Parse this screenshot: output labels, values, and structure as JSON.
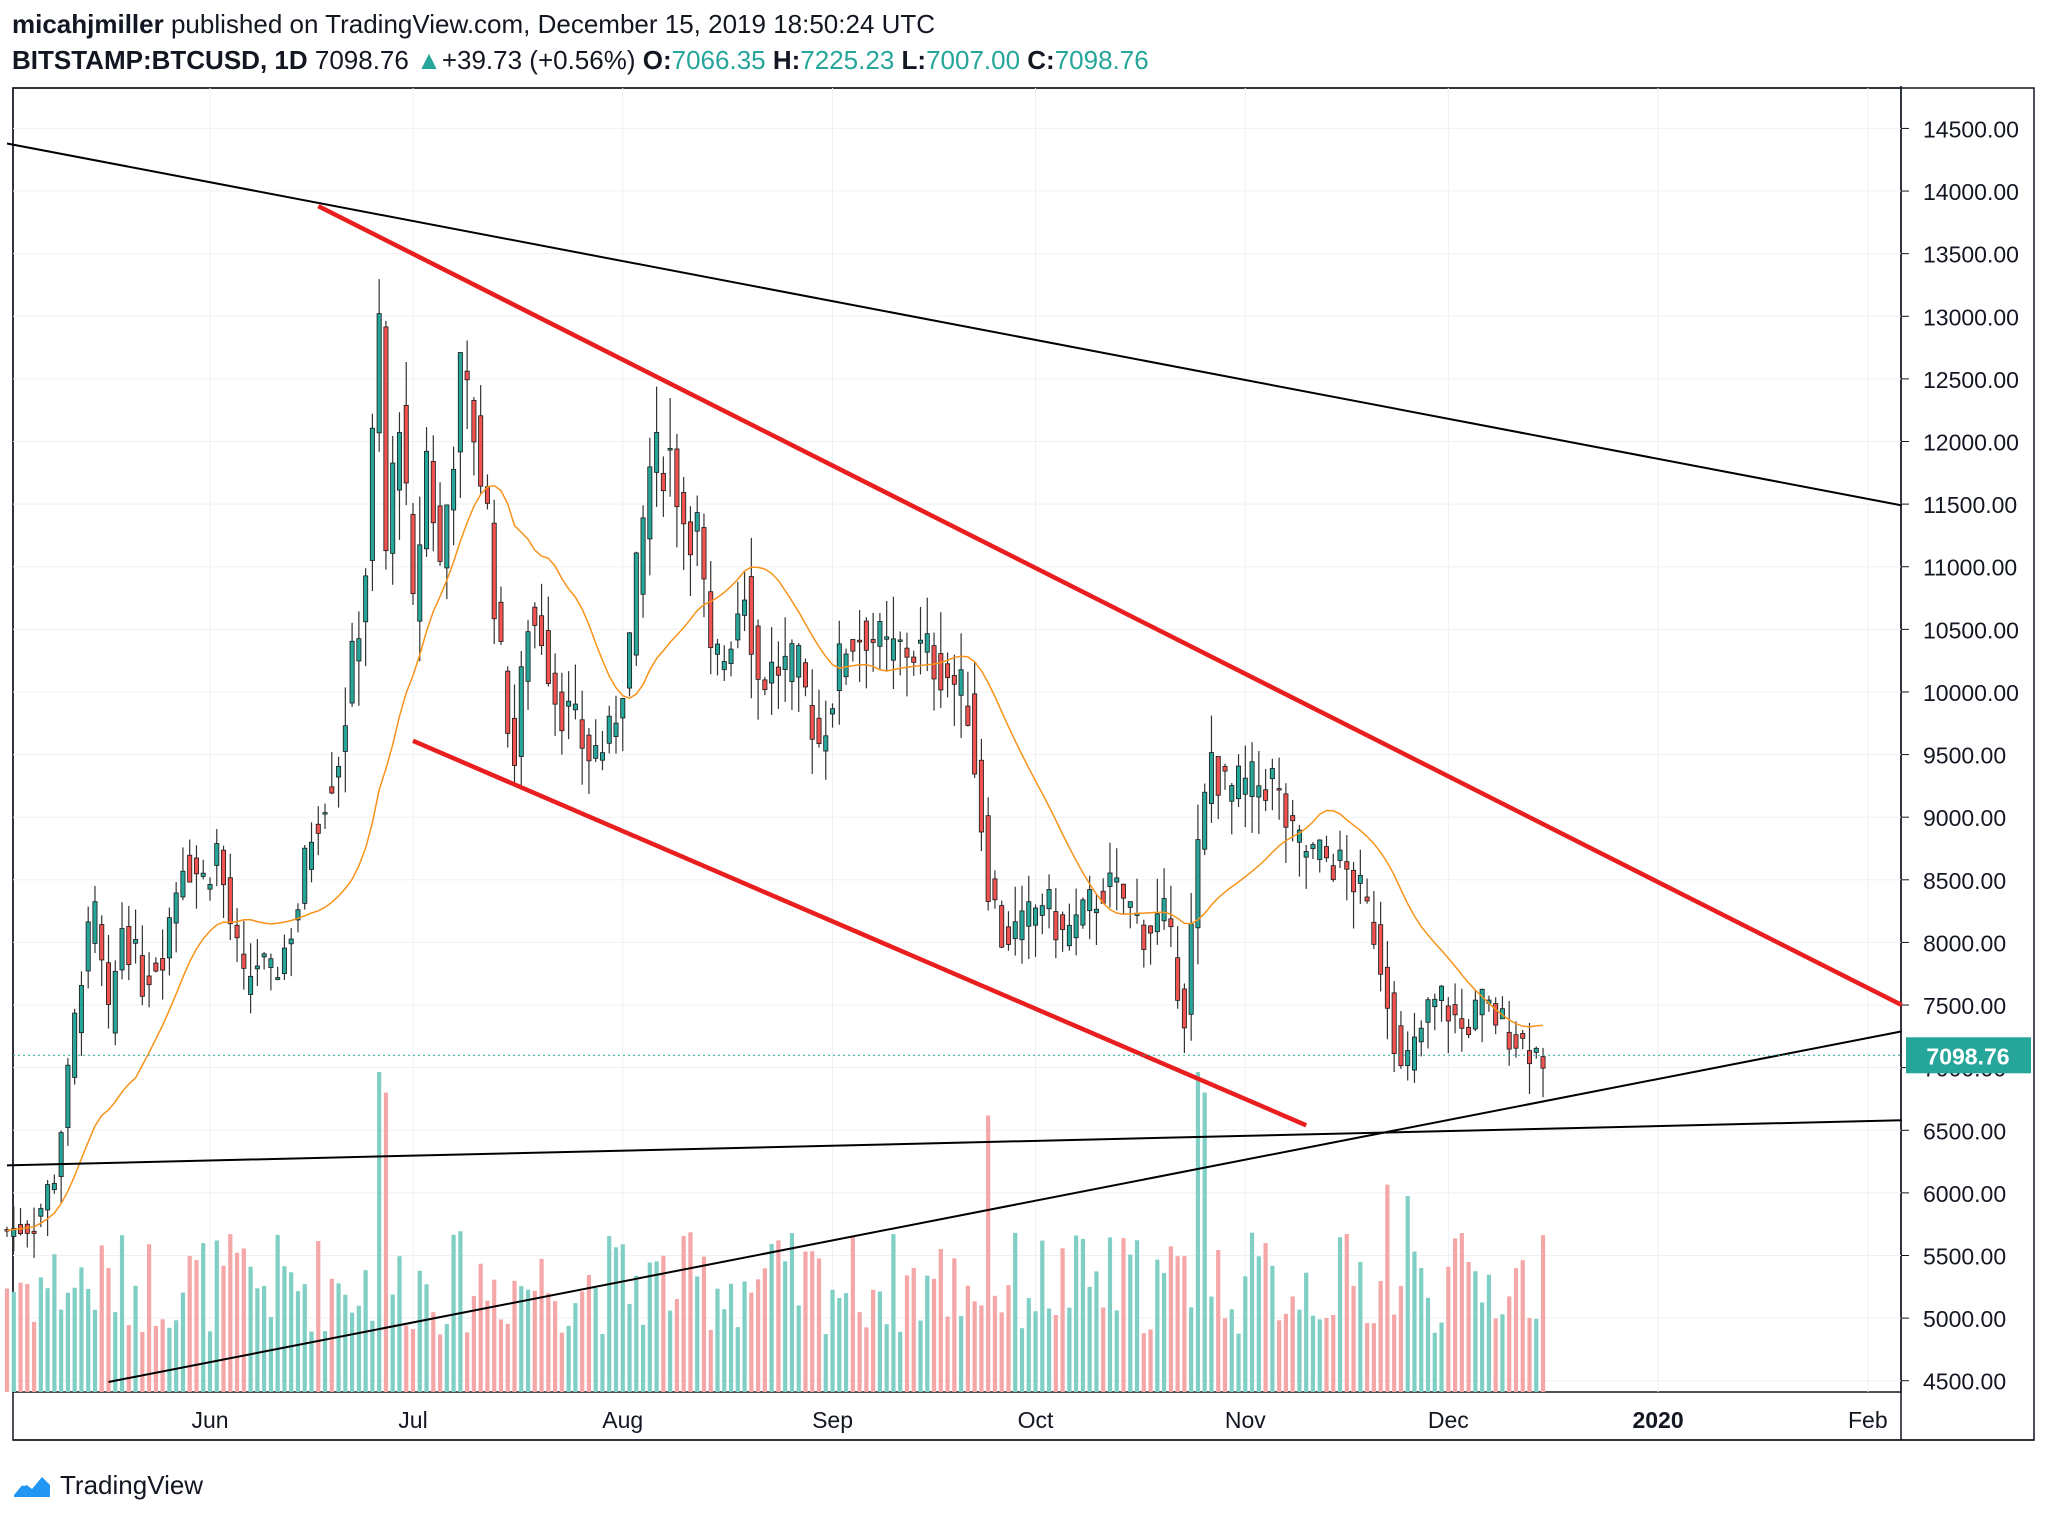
{
  "header": {
    "author": "micahjmiller",
    "published_text": "published on TradingView.com, December 15, 2019 18:50:24 UTC",
    "symbol": "BITSTAMP:BTCUSD, 1D",
    "last": "7098.76",
    "change_arrow": "▲",
    "change": "+39.73 (+0.56%)",
    "o_label": "O:",
    "o_value": "7066.35",
    "h_label": "H:",
    "h_value": "7225.23",
    "l_label": "L:",
    "l_value": "7007.00",
    "c_label": "C:",
    "c_value": "7098.76"
  },
  "footer": {
    "brand": "TradingView"
  },
  "colors": {
    "up": "#26a69a",
    "down": "#ef5350",
    "candle_up_fill": "#26a69a",
    "vol_up": "#7fcfc4",
    "vol_down": "#f5a6a6",
    "ma": "#f7931a",
    "channel": "#e91e1e",
    "trend": "#000000",
    "grid": "#eef0f3"
  },
  "chart_data": {
    "type": "candlestick",
    "title": "",
    "price_label": "7098.76",
    "y_ticks": [
      "14500.00",
      "14000.00",
      "13500.00",
      "13000.00",
      "12500.00",
      "12000.00",
      "11500.00",
      "11000.00",
      "10500.00",
      "10000.00",
      "9500.00",
      "9000.00",
      "8500.00",
      "8000.00",
      "7500.00",
      "7000.00",
      "6500.00",
      "6000.00",
      "5500.00",
      "5000.00",
      "4500.00"
    ],
    "ylim": [
      4500,
      14500
    ],
    "x_ticks": [
      {
        "label": "Jun",
        "date": "2019-06-01"
      },
      {
        "label": "Jul",
        "date": "2019-07-01"
      },
      {
        "label": "Aug",
        "date": "2019-08-01"
      },
      {
        "label": "Sep",
        "date": "2019-09-01"
      },
      {
        "label": "Oct",
        "date": "2019-10-01"
      },
      {
        "label": "Nov",
        "date": "2019-11-01"
      },
      {
        "label": "Dec",
        "date": "2019-12-01"
      },
      {
        "label": "2020",
        "date": "2020-01-01"
      },
      {
        "label": "Feb",
        "date": "2020-02-01"
      }
    ],
    "xlim": [
      "2019-05-02",
      "2020-02-06"
    ],
    "moving_average": "orange 20-day line",
    "trendlines": [
      {
        "name": "upper black",
        "color": "#000000",
        "from": {
          "date": "2019-05-02",
          "price": 14380
        },
        "to": {
          "date": "2020-02-06",
          "price": 11490
        }
      },
      {
        "name": "upper red",
        "color": "#e91e1e",
        "from": {
          "date": "2019-06-17",
          "price": 13880
        },
        "to": {
          "date": "2020-02-06",
          "price": 7500
        }
      },
      {
        "name": "lower red",
        "color": "#e91e1e",
        "from": {
          "date": "2019-07-01",
          "price": 9610
        },
        "to": {
          "date": "2019-11-10",
          "price": 6540
        }
      },
      {
        "name": "rising black",
        "color": "#000000",
        "from": {
          "date": "2019-05-17",
          "price": 4490
        },
        "to": {
          "date": "2020-02-06",
          "price": 7290
        }
      },
      {
        "name": "flat black",
        "color": "#000000",
        "from": {
          "date": "2019-05-02",
          "price": 6220
        },
        "to": {
          "date": "2020-02-06",
          "price": 6580
        }
      }
    ],
    "closes": [
      {
        "date": "2019-05-02",
        "close": 5700
      },
      {
        "date": "2019-05-06",
        "close": 5760
      },
      {
        "date": "2019-05-09",
        "close": 6150
      },
      {
        "date": "2019-05-11",
        "close": 6900
      },
      {
        "date": "2019-05-13",
        "close": 7800
      },
      {
        "date": "2019-05-15",
        "close": 8200
      },
      {
        "date": "2019-05-17",
        "close": 7350
      },
      {
        "date": "2019-05-19",
        "close": 8150
      },
      {
        "date": "2019-05-22",
        "close": 7700
      },
      {
        "date": "2019-05-25",
        "close": 7950
      },
      {
        "date": "2019-05-28",
        "close": 8700
      },
      {
        "date": "2019-05-31",
        "close": 8500
      },
      {
        "date": "2019-06-02",
        "close": 8750
      },
      {
        "date": "2019-06-04",
        "close": 8150
      },
      {
        "date": "2019-06-06",
        "close": 7650
      },
      {
        "date": "2019-06-08",
        "close": 7850
      },
      {
        "date": "2019-06-10",
        "close": 7700
      },
      {
        "date": "2019-06-12",
        "close": 7950
      },
      {
        "date": "2019-06-14",
        "close": 8300
      },
      {
        "date": "2019-06-16",
        "close": 8900
      },
      {
        "date": "2019-06-18",
        "close": 9200
      },
      {
        "date": "2019-06-20",
        "close": 9500
      },
      {
        "date": "2019-06-22",
        "close": 10200
      },
      {
        "date": "2019-06-24",
        "close": 11000
      },
      {
        "date": "2019-06-26",
        "close": 12900
      },
      {
        "date": "2019-06-27",
        "close": 11100
      },
      {
        "date": "2019-06-29",
        "close": 12300
      },
      {
        "date": "2019-07-01",
        "close": 10600
      },
      {
        "date": "2019-07-03",
        "close": 11900
      },
      {
        "date": "2019-07-05",
        "close": 11000
      },
      {
        "date": "2019-07-08",
        "close": 12500
      },
      {
        "date": "2019-07-10",
        "close": 12100
      },
      {
        "date": "2019-07-12",
        "close": 11400
      },
      {
        "date": "2019-07-14",
        "close": 10200
      },
      {
        "date": "2019-07-16",
        "close": 9450
      },
      {
        "date": "2019-07-18",
        "close": 10600
      },
      {
        "date": "2019-07-20",
        "close": 10500
      },
      {
        "date": "2019-07-22",
        "close": 10000
      },
      {
        "date": "2019-07-24",
        "close": 9800
      },
      {
        "date": "2019-07-27",
        "close": 9500
      },
      {
        "date": "2019-07-30",
        "close": 9600
      },
      {
        "date": "2019-08-02",
        "close": 10400
      },
      {
        "date": "2019-08-05",
        "close": 11800
      },
      {
        "date": "2019-08-08",
        "close": 11900
      },
      {
        "date": "2019-08-10",
        "close": 11400
      },
      {
        "date": "2019-08-12",
        "close": 11300
      },
      {
        "date": "2019-08-14",
        "close": 10200
      },
      {
        "date": "2019-08-16",
        "close": 10300
      },
      {
        "date": "2019-08-19",
        "close": 10900
      },
      {
        "date": "2019-08-21",
        "close": 10100
      },
      {
        "date": "2019-08-24",
        "close": 10200
      },
      {
        "date": "2019-08-27",
        "close": 10150
      },
      {
        "date": "2019-08-30",
        "close": 9600
      },
      {
        "date": "2019-09-03",
        "close": 10400
      },
      {
        "date": "2019-09-06",
        "close": 10500
      },
      {
        "date": "2019-09-09",
        "close": 10300
      },
      {
        "date": "2019-09-12",
        "close": 10350
      },
      {
        "date": "2019-09-15",
        "close": 10300
      },
      {
        "date": "2019-09-18",
        "close": 10150
      },
      {
        "date": "2019-09-21",
        "close": 9900
      },
      {
        "date": "2019-09-24",
        "close": 8500
      },
      {
        "date": "2019-09-26",
        "close": 8050
      },
      {
        "date": "2019-09-29",
        "close": 8100
      },
      {
        "date": "2019-10-02",
        "close": 8350
      },
      {
        "date": "2019-10-05",
        "close": 8050
      },
      {
        "date": "2019-10-08",
        "close": 8200
      },
      {
        "date": "2019-10-11",
        "close": 8450
      },
      {
        "date": "2019-10-14",
        "close": 8350
      },
      {
        "date": "2019-10-17",
        "close": 8100
      },
      {
        "date": "2019-10-20",
        "close": 8200
      },
      {
        "date": "2019-10-23",
        "close": 7450
      },
      {
        "date": "2019-10-25",
        "close": 8700
      },
      {
        "date": "2019-10-27",
        "close": 9500
      },
      {
        "date": "2019-10-29",
        "close": 9200
      },
      {
        "date": "2019-11-02",
        "close": 9250
      },
      {
        "date": "2019-11-05",
        "close": 9300
      },
      {
        "date": "2019-11-08",
        "close": 8800
      },
      {
        "date": "2019-11-11",
        "close": 8700
      },
      {
        "date": "2019-11-14",
        "close": 8650
      },
      {
        "date": "2019-11-17",
        "close": 8500
      },
      {
        "date": "2019-11-20",
        "close": 8100
      },
      {
        "date": "2019-11-22",
        "close": 7600
      },
      {
        "date": "2019-11-24",
        "close": 6950
      },
      {
        "date": "2019-11-26",
        "close": 7150
      },
      {
        "date": "2019-11-28",
        "close": 7450
      },
      {
        "date": "2019-11-30",
        "close": 7550
      },
      {
        "date": "2019-12-03",
        "close": 7300
      },
      {
        "date": "2019-12-06",
        "close": 7500
      },
      {
        "date": "2019-12-09",
        "close": 7350
      },
      {
        "date": "2019-12-12",
        "close": 7200
      },
      {
        "date": "2019-12-15",
        "close": 7098.76
      }
    ],
    "volume_bars": "bottom band, teal = up day, red = down day, spikes late June and Sep 24 / Oct 25"
  }
}
